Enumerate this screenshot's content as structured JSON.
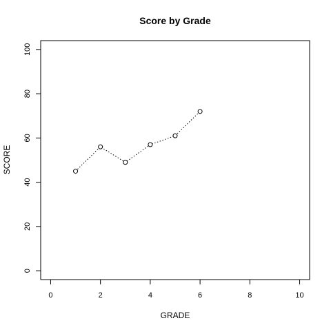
{
  "chart_data": {
    "type": "line",
    "title": "Score by Grade",
    "xlabel": "GRADE",
    "ylabel": "SCORE",
    "xlim": [
      -0.4,
      10.4
    ],
    "ylim": [
      -4,
      104
    ],
    "x_ticks": [
      0,
      2,
      4,
      6,
      8,
      10
    ],
    "y_ticks": [
      0,
      20,
      40,
      60,
      80,
      100
    ],
    "grid": false,
    "line_style": "dotted",
    "marker": "open-circle",
    "series": [
      {
        "name": "Score",
        "x": [
          1,
          2,
          3,
          4,
          5,
          6
        ],
        "values": [
          45,
          56,
          49,
          57,
          61,
          72
        ]
      }
    ]
  }
}
